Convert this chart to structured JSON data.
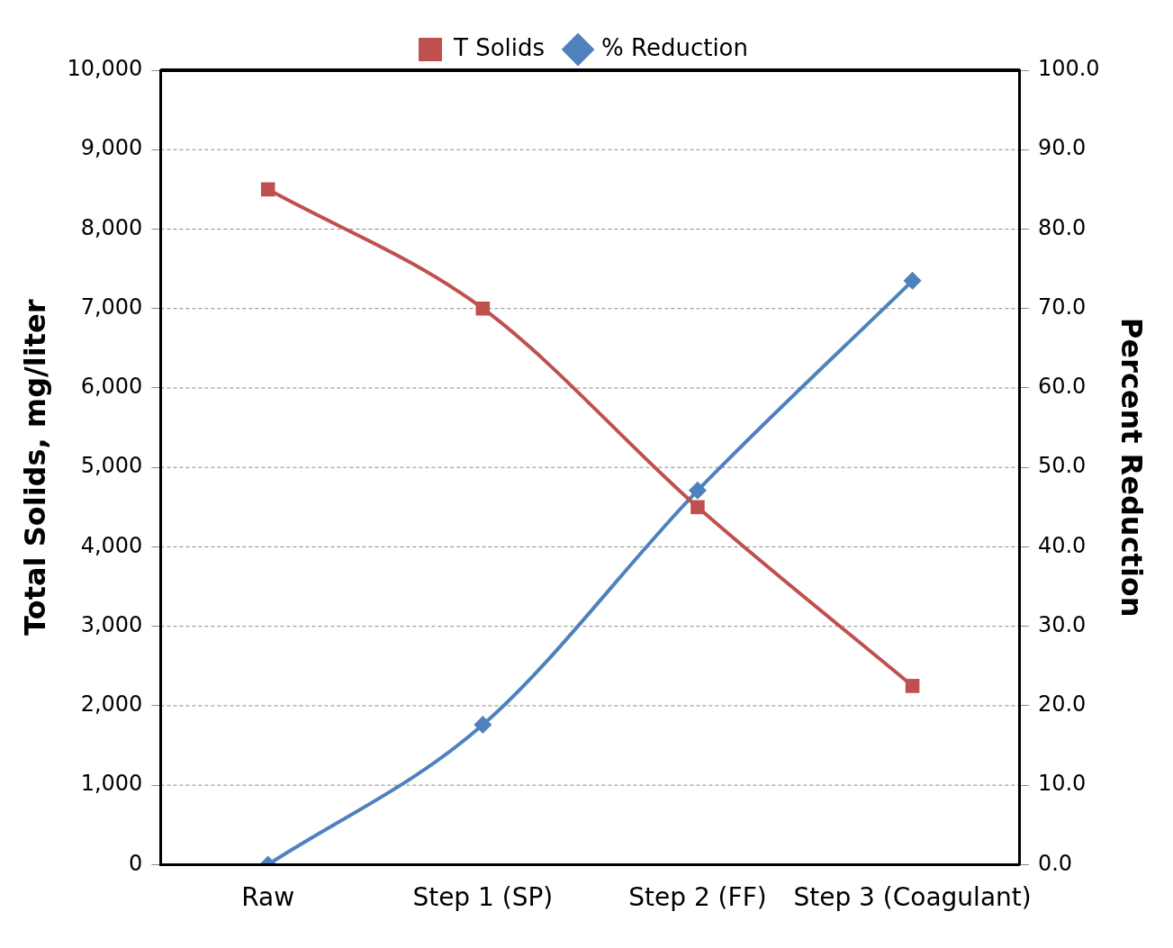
{
  "chart_data": {
    "type": "line",
    "ylabel": "Total Solids, mg/liter",
    "y2label": "Percent Reduction",
    "categories": [
      "Raw",
      "Step 1 (SP)",
      "Step 2 (FF)",
      "Step 3 (Coagulant)"
    ],
    "series": [
      {
        "name": "T Solids",
        "color": "#c0504d",
        "values": [
          8500,
          7000,
          4500,
          2250
        ],
        "marker": "square"
      },
      {
        "name": "% Reduction",
        "color": "#4f81bd",
        "values": [
          0,
          17.6,
          47.1,
          73.5
        ],
        "marker": "diamond",
        "axis": "y2"
      }
    ],
    "ylim": [
      0,
      10000
    ],
    "yticks": [
      0,
      {
        "value": 1000,
        "label": "1,000"
      },
      {
        "value": 2000,
        "label": "2,000"
      },
      {
        "value": 3000,
        "label": "3,000"
      },
      {
        "value": 4000,
        "label": "4,000"
      },
      {
        "value": 5000,
        "label": "5,000"
      },
      {
        "value": 6000,
        "label": "6,000"
      },
      {
        "value": 7000,
        "label": "7,000"
      },
      {
        "value": 8000,
        "label": "8,000"
      },
      {
        "value": 9000,
        "label": "9,000"
      },
      {
        "value": 10000,
        "label": "10,000"
      }
    ],
    "y2lim": [
      0,
      100
    ],
    "y2ticks": [
      {
        "value": 0,
        "label": "0.0"
      },
      {
        "value": 10,
        "label": "10.0"
      },
      {
        "value": 20,
        "label": "20.0"
      },
      {
        "value": 30,
        "label": "30.0"
      },
      {
        "value": 40,
        "label": "40.0"
      },
      {
        "value": 50,
        "label": "50.0"
      },
      {
        "value": 60,
        "label": "60.0"
      },
      {
        "value": 70,
        "label": "70.0"
      },
      {
        "value": 80,
        "label": "80.0"
      },
      {
        "value": 90,
        "label": "90.0"
      },
      {
        "value": 100,
        "label": "100.0"
      }
    ],
    "grid": "y",
    "legend": "top",
    "line_style": "solid"
  }
}
